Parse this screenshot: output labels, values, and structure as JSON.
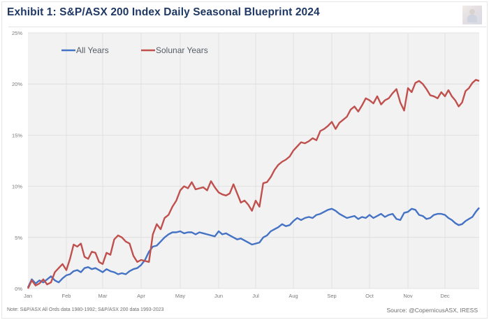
{
  "header": {
    "title": "Exhibit 1: S&P/ASX 200 Index Daily Seasonal Blueprint 2024",
    "logo_icon": "author-avatar-icon"
  },
  "footer": {
    "note": "Note: S&P/ASX All Ords data 1980-1992; S&P/ASX 200 data 1993-2023",
    "source": "Source: @CopernicusASX, IRESS"
  },
  "chart_data": {
    "type": "line",
    "title": "Exhibit 1: S&P/ASX 200 Index Daily Seasonal Blueprint 2024",
    "xlabel": "",
    "ylabel": "",
    "x_unit": "months elapsed since Jan 1 (0 = Jan, 12 = year end)",
    "xlim": [
      0,
      12
    ],
    "ylim": [
      0,
      25
    ],
    "y_ticks": [
      0,
      5,
      10,
      15,
      20,
      25
    ],
    "y_tick_labels": [
      "0%",
      "5%",
      "10%",
      "15%",
      "20%",
      "25%"
    ],
    "x_tick_labels": [
      "Jan",
      "Feb",
      "Mar",
      "Apr",
      "May",
      "Jun",
      "Jul",
      "Aug",
      "Sep",
      "Oct",
      "Nov",
      "Dec"
    ],
    "grid": true,
    "legend_position": "top-left",
    "series": [
      {
        "name": "All Years",
        "color": "#4472c4",
        "x": [
          0,
          0.1,
          0.2,
          0.3,
          0.4,
          0.5,
          0.6,
          0.7,
          0.8,
          0.9,
          1.0,
          1.1,
          1.2,
          1.3,
          1.4,
          1.5,
          1.6,
          1.7,
          1.8,
          1.9,
          2.0,
          2.1,
          2.2,
          2.3,
          2.4,
          2.5,
          2.6,
          2.7,
          2.8,
          2.9,
          3.0,
          3.1,
          3.2,
          3.3,
          3.4,
          3.5,
          3.6,
          3.7,
          3.8,
          3.9,
          4.0,
          4.1,
          4.2,
          4.3,
          4.4,
          4.5,
          4.6,
          4.7,
          4.8,
          4.9,
          5.0,
          5.1,
          5.2,
          5.3,
          5.4,
          5.5,
          5.6,
          5.7,
          5.8,
          5.9,
          6.0,
          6.1,
          6.2,
          6.3,
          6.4,
          6.5,
          6.6,
          6.7,
          6.8,
          6.9,
          7.0,
          7.1,
          7.2,
          7.3,
          7.4,
          7.5,
          7.6,
          7.7,
          7.8,
          7.9,
          8.0,
          8.1,
          8.2,
          8.3,
          8.4,
          8.5,
          8.6,
          8.7,
          8.8,
          8.9,
          9.0,
          9.1,
          9.2,
          9.3,
          9.4,
          9.5,
          9.6,
          9.7,
          9.8,
          9.9,
          10.0,
          10.1,
          10.2,
          10.3,
          10.4,
          10.5,
          10.6,
          10.7,
          10.8,
          10.9,
          11.0,
          11.1,
          11.2,
          11.3,
          11.4,
          11.5,
          11.6,
          11.7,
          11.8,
          11.9,
          12.0
        ],
        "values": [
          0.1,
          0.9,
          0.5,
          0.8,
          0.6,
          0.9,
          1.2,
          0.8,
          0.6,
          1.0,
          1.3,
          1.4,
          1.7,
          1.8,
          1.6,
          2.0,
          2.1,
          1.9,
          2.0,
          1.8,
          1.6,
          1.9,
          1.7,
          1.6,
          1.4,
          1.5,
          1.4,
          1.7,
          1.9,
          2.0,
          2.3,
          2.8,
          3.6,
          4.1,
          4.2,
          4.6,
          5.0,
          5.3,
          5.5,
          5.5,
          5.6,
          5.4,
          5.5,
          5.5,
          5.3,
          5.5,
          5.4,
          5.3,
          5.2,
          5.1,
          5.6,
          5.3,
          5.4,
          5.2,
          5.0,
          4.8,
          4.9,
          4.7,
          4.5,
          4.3,
          4.4,
          4.5,
          5.0,
          5.2,
          5.6,
          5.8,
          6.0,
          6.3,
          6.1,
          6.2,
          6.6,
          6.9,
          6.7,
          6.9,
          7.0,
          6.9,
          7.2,
          7.3,
          7.5,
          7.7,
          7.8,
          7.6,
          7.3,
          7.1,
          6.9,
          7.0,
          7.1,
          6.8,
          7.0,
          6.9,
          7.2,
          6.9,
          7.1,
          7.3,
          7.0,
          7.2,
          7.3,
          6.8,
          6.7,
          7.4,
          7.5,
          7.8,
          7.7,
          7.2,
          7.1,
          6.8,
          6.9,
          7.2,
          7.3,
          7.3,
          7.2,
          6.9,
          6.7,
          6.4,
          6.2,
          6.3,
          6.6,
          6.8,
          7.0,
          7.5,
          7.9
        ]
      },
      {
        "name": "Solunar Years",
        "color": "#c0504d",
        "x": [
          0,
          0.1,
          0.2,
          0.3,
          0.4,
          0.5,
          0.6,
          0.7,
          0.8,
          0.9,
          1.0,
          1.1,
          1.2,
          1.3,
          1.4,
          1.5,
          1.6,
          1.7,
          1.8,
          1.9,
          2.0,
          2.1,
          2.2,
          2.3,
          2.4,
          2.5,
          2.6,
          2.7,
          2.8,
          2.9,
          3.0,
          3.1,
          3.2,
          3.3,
          3.4,
          3.5,
          3.6,
          3.7,
          3.8,
          3.9,
          4.0,
          4.1,
          4.2,
          4.3,
          4.4,
          4.5,
          4.6,
          4.7,
          4.8,
          4.9,
          5.0,
          5.1,
          5.2,
          5.3,
          5.4,
          5.5,
          5.6,
          5.7,
          5.8,
          5.9,
          6.0,
          6.1,
          6.2,
          6.3,
          6.4,
          6.5,
          6.6,
          6.7,
          6.8,
          6.9,
          7.0,
          7.1,
          7.2,
          7.3,
          7.4,
          7.5,
          7.6,
          7.7,
          7.8,
          7.9,
          8.0,
          8.1,
          8.2,
          8.3,
          8.4,
          8.5,
          8.6,
          8.7,
          8.8,
          8.9,
          9.0,
          9.1,
          9.2,
          9.3,
          9.4,
          9.5,
          9.6,
          9.7,
          9.8,
          9.9,
          10.0,
          10.1,
          10.2,
          10.3,
          10.4,
          10.5,
          10.6,
          10.7,
          10.8,
          10.9,
          11.0,
          11.1,
          11.2,
          11.3,
          11.4,
          11.5,
          11.6,
          11.7,
          11.8,
          11.9,
          12.0
        ],
        "values": [
          0.0,
          0.8,
          0.3,
          0.5,
          0.9,
          0.4,
          0.6,
          1.6,
          2.0,
          2.4,
          1.8,
          2.9,
          4.3,
          4.1,
          4.4,
          3.1,
          2.9,
          3.6,
          3.5,
          2.6,
          2.4,
          3.5,
          3.3,
          4.8,
          5.2,
          5.0,
          4.6,
          4.4,
          3.2,
          2.6,
          2.8,
          2.7,
          2.6,
          5.3,
          6.3,
          5.8,
          6.9,
          7.2,
          8.0,
          8.6,
          9.6,
          10.0,
          9.8,
          10.4,
          9.7,
          9.8,
          9.9,
          9.6,
          10.5,
          9.9,
          9.4,
          9.2,
          9.1,
          9.3,
          10.2,
          9.3,
          8.4,
          8.6,
          8.2,
          7.6,
          8.6,
          8.0,
          10.3,
          10.4,
          10.9,
          11.6,
          12.1,
          12.4,
          12.6,
          12.9,
          13.5,
          13.9,
          14.3,
          14.2,
          14.4,
          14.7,
          14.5,
          15.4,
          15.6,
          15.9,
          16.3,
          15.6,
          16.2,
          16.5,
          16.8,
          17.5,
          17.8,
          17.3,
          17.9,
          18.6,
          18.4,
          18.1,
          18.8,
          18.0,
          18.4,
          18.6,
          19.1,
          19.5,
          18.2,
          17.4,
          19.6,
          19.2,
          20.1,
          20.3,
          20.0,
          19.5,
          18.9,
          18.8,
          18.6,
          19.2,
          18.8,
          19.4,
          18.8,
          18.4,
          17.8,
          18.2,
          19.3,
          19.6,
          20.1,
          20.4,
          20.3
        ]
      }
    ]
  }
}
